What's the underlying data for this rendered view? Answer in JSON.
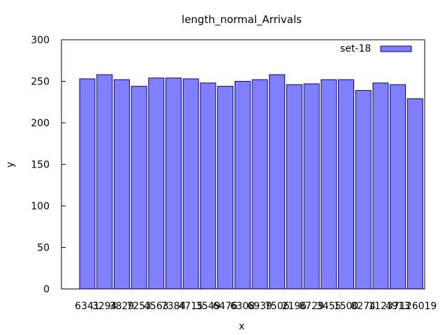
{
  "chart_data": {
    "type": "bar",
    "title": "length_normal_Arrivals",
    "xlabel": "x",
    "ylabel": "y",
    "ylim": [
      0,
      300
    ],
    "yticks": [
      0,
      50,
      100,
      150,
      200,
      250,
      300
    ],
    "grid": false,
    "legend_position": "top-right",
    "categories": [
      "6341",
      "3294",
      "3829",
      "7253",
      "4563",
      "7384",
      "4715",
      "3549",
      "6476",
      "6308",
      "6939",
      "7506",
      "2196",
      "8729",
      "3455",
      "1500",
      "8274",
      "1123",
      "4913",
      "7126019"
    ],
    "series": [
      {
        "name": "set-18",
        "color": "#8080ff",
        "edge_color": "#000080",
        "values": [
          253,
          258,
          252,
          244,
          254,
          254,
          253,
          248,
          244,
          250,
          252,
          258,
          246,
          247,
          252,
          252,
          239,
          248,
          246,
          229
        ]
      }
    ]
  }
}
